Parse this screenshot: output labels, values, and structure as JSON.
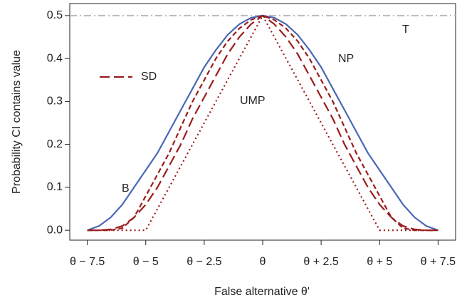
{
  "chart_data": {
    "type": "line",
    "xlabel": "False alternative θ'",
    "ylabel": "Probability CI contains value",
    "x": [
      -7.5,
      -7,
      -6.5,
      -6,
      -5.5,
      -5,
      -4.5,
      -4,
      -3.5,
      -3,
      -2.5,
      -2,
      -1.5,
      -1,
      -0.5,
      0,
      0.5,
      1,
      1.5,
      2,
      2.5,
      3,
      3.5,
      4,
      4.5,
      5,
      5.5,
      6,
      6.5,
      7,
      7.5
    ],
    "series": [
      {
        "name": "B",
        "color": "#4a67b5",
        "linestyle": "solid",
        "values": [
          0,
          0.01,
          0.03,
          0.06,
          0.1,
          0.14,
          0.18,
          0.23,
          0.28,
          0.33,
          0.38,
          0.42,
          0.455,
          0.48,
          0.495,
          0.5,
          0.495,
          0.48,
          0.455,
          0.42,
          0.38,
          0.33,
          0.28,
          0.23,
          0.18,
          0.14,
          0.1,
          0.06,
          0.03,
          0.01,
          0
        ]
      },
      {
        "name": "SD",
        "color": "#9b1c1c",
        "linestyle": "longdash",
        "values": [
          0,
          0,
          0.002,
          0.01,
          0.03,
          0.06,
          0.1,
          0.15,
          0.2,
          0.26,
          0.31,
          0.36,
          0.41,
          0.45,
          0.48,
          0.5,
          0.48,
          0.45,
          0.41,
          0.36,
          0.31,
          0.26,
          0.2,
          0.15,
          0.1,
          0.06,
          0.03,
          0.01,
          0.002,
          0,
          0
        ]
      },
      {
        "name": "NP",
        "color": "#9b1c1c",
        "linestyle": "dashed",
        "values": [
          0,
          0,
          0,
          0.005,
          0.03,
          0.08,
          0.13,
          0.18,
          0.24,
          0.3,
          0.35,
          0.4,
          0.44,
          0.47,
          0.49,
          0.5,
          0.49,
          0.47,
          0.44,
          0.4,
          0.35,
          0.3,
          0.24,
          0.18,
          0.13,
          0.08,
          0.03,
          0.005,
          0,
          0,
          0
        ]
      },
      {
        "name": "UMP",
        "color": "#9b1c1c",
        "linestyle": "dotted",
        "values": [
          0,
          0,
          0,
          0,
          0,
          0,
          0.05,
          0.1,
          0.15,
          0.2,
          0.25,
          0.3,
          0.35,
          0.4,
          0.45,
          0.5,
          0.45,
          0.4,
          0.35,
          0.3,
          0.25,
          0.2,
          0.15,
          0.1,
          0.05,
          0,
          0,
          0,
          0,
          0,
          0
        ]
      }
    ],
    "reference_line": {
      "name": "T",
      "value": 0.5,
      "color": "#bbbbbb"
    },
    "xlim": [
      -8.25,
      8.25
    ],
    "xticks": [
      {
        "value": -7.5,
        "label": "θ − 7.5"
      },
      {
        "value": -5,
        "label": "θ − 5"
      },
      {
        "value": -2.5,
        "label": "θ − 2.5"
      },
      {
        "value": 0,
        "label": "θ"
      },
      {
        "value": 2.5,
        "label": "θ + 2.5"
      },
      {
        "value": 5,
        "label": "θ + 5"
      },
      {
        "value": 7.5,
        "label": "θ + 7.5"
      }
    ],
    "ylim": [
      -0.023,
      0.528
    ],
    "yticks": [
      {
        "value": 0,
        "label": "0.0"
      },
      0.1,
      0.2,
      0.3,
      0.4,
      0.5
    ]
  }
}
